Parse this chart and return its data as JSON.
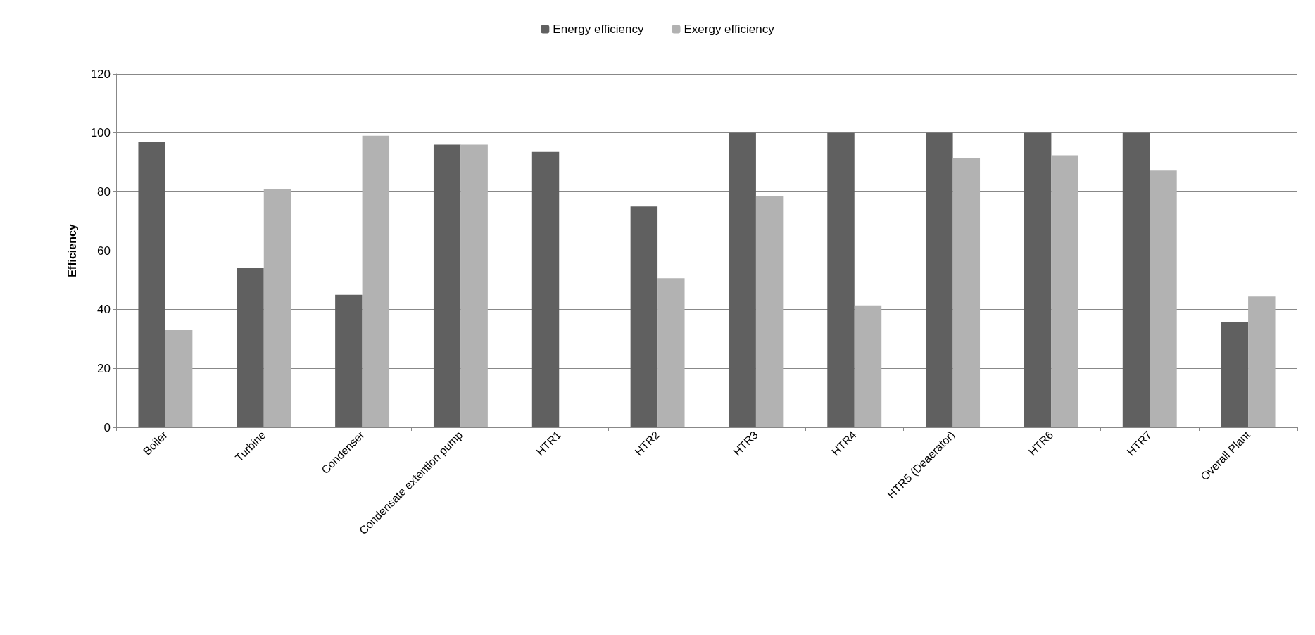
{
  "chart_data": {
    "type": "bar",
    "ylabel": "Efficiency",
    "categories": [
      "Boiler",
      "Turbine",
      "Condenser",
      "Condensate extention pump",
      "HTR1",
      "HTR2",
      "HTR3",
      "HTR4",
      "HTR5 (Deaerator)",
      "HTR6",
      "HTR7",
      "Overall Plant"
    ],
    "series": [
      {
        "name": "Energy efficiency",
        "color": "#606060",
        "values": [
          97,
          54,
          45,
          96,
          93.5,
          75,
          100,
          100,
          100,
          100,
          100,
          35.6
        ]
      },
      {
        "name": "Exergy efficiency",
        "color": "#b2b2b2",
        "values": [
          33,
          81,
          99,
          96,
          null,
          50.6,
          78.5,
          41.4,
          91.3,
          92.4,
          87.2,
          44.4
        ]
      }
    ],
    "ylim": [
      0,
      120
    ],
    "yticks": [
      0,
      20,
      40,
      60,
      80,
      100,
      120
    ],
    "grid": "y",
    "legend": "top"
  }
}
